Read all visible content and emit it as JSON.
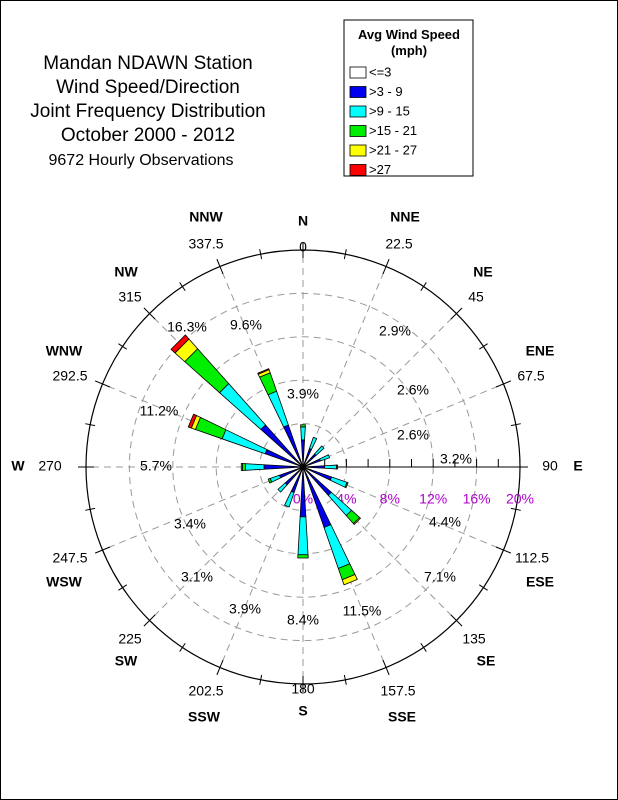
{
  "chart_data": {
    "type": "wind-rose",
    "title_lines": [
      "Mandan NDAWN Station",
      "Wind Speed/Direction",
      "Joint Frequency Distribution",
      "October 2000 - 2012"
    ],
    "subtitle": "9672 Hourly Observations",
    "legend": {
      "title_lines": [
        "Avg Wind Speed",
        "(mph)"
      ],
      "placement": "top-right",
      "bins": [
        {
          "label": "<=3",
          "color": "#ffffff"
        },
        {
          "label": ">3 - 9",
          "color": "#0000ee"
        },
        {
          "label": ">9 - 15",
          "color": "#00ffff"
        },
        {
          "label": ">15 - 21",
          "color": "#00ee00"
        },
        {
          "label": ">21 - 27",
          "color": "#ffff00"
        },
        {
          "label": ">27",
          "color": "#ff0000"
        }
      ]
    },
    "radial_axis": {
      "unit": "%",
      "max": 20,
      "ticks": [
        "0%",
        "4%",
        "8%",
        "12%",
        "16%",
        "20%"
      ],
      "tick_values": [
        0,
        4,
        8,
        12,
        16,
        20
      ],
      "grid_rings": [
        4,
        8,
        12,
        16
      ],
      "color": "#b000d0"
    },
    "directions": [
      {
        "name": "N",
        "degrees": "0",
        "total": "3.9%",
        "segments": [
          0.1,
          2.4,
          1.2,
          0.2,
          0,
          0
        ]
      },
      {
        "name": "NNE",
        "degrees": "22.5",
        "total": "2.9%",
        "segments": [
          0.1,
          1.7,
          1.1,
          0,
          0,
          0
        ]
      },
      {
        "name": "NE",
        "degrees": "45",
        "total": "2.6%",
        "segments": [
          0.1,
          1.5,
          1.0,
          0,
          0,
          0
        ]
      },
      {
        "name": "ENE",
        "degrees": "67.5",
        "total": "2.6%",
        "segments": [
          0.1,
          1.6,
          0.9,
          0,
          0,
          0
        ]
      },
      {
        "name": "E",
        "degrees": "90",
        "total": "3.2%",
        "segments": [
          0.1,
          1.9,
          1.1,
          0.1,
          0,
          0
        ]
      },
      {
        "name": "ESE",
        "degrees": "112.5",
        "total": "4.4%",
        "segments": [
          0.1,
          2.7,
          1.5,
          0.1,
          0,
          0
        ]
      },
      {
        "name": "SE",
        "degrees": "135",
        "total": "7.1%",
        "segments": [
          0.1,
          3.4,
          2.5,
          1.0,
          0.1,
          0
        ]
      },
      {
        "name": "SSE",
        "degrees": "157.5",
        "total": "11.5%",
        "segments": [
          0.1,
          5.8,
          4.0,
          1.1,
          0.5,
          0
        ]
      },
      {
        "name": "S",
        "degrees": "180",
        "total": "8.4%",
        "segments": [
          0.1,
          4.5,
          3.5,
          0.3,
          0,
          0
        ]
      },
      {
        "name": "SSW",
        "degrees": "202.5",
        "total": "3.9%",
        "segments": [
          0.1,
          2.4,
          1.4,
          0,
          0,
          0
        ]
      },
      {
        "name": "SW",
        "degrees": "225",
        "total": "3.1%",
        "segments": [
          0.1,
          2.1,
          0.9,
          0,
          0,
          0
        ]
      },
      {
        "name": "WSW",
        "degrees": "247.5",
        "total": "3.4%",
        "segments": [
          0.1,
          2.2,
          0.9,
          0.2,
          0,
          0
        ]
      },
      {
        "name": "W",
        "degrees": "270",
        "total": "5.7%",
        "segments": [
          0.1,
          3.5,
          1.7,
          0.3,
          0.1,
          0
        ]
      },
      {
        "name": "WNW",
        "degrees": "292.5",
        "total": "11.2%",
        "segments": [
          0.1,
          3.6,
          4.2,
          2.6,
          0.4,
          0.3
        ]
      },
      {
        "name": "NW",
        "degrees": "315",
        "total": "16.3%",
        "segments": [
          0.1,
          5.1,
          5.1,
          4.3,
          1.2,
          0.5
        ]
      },
      {
        "name": "NNW",
        "degrees": "337.5",
        "total": "9.6%",
        "segments": [
          0.1,
          4.0,
          3.3,
          1.8,
          0.3,
          0.1
        ]
      }
    ]
  }
}
